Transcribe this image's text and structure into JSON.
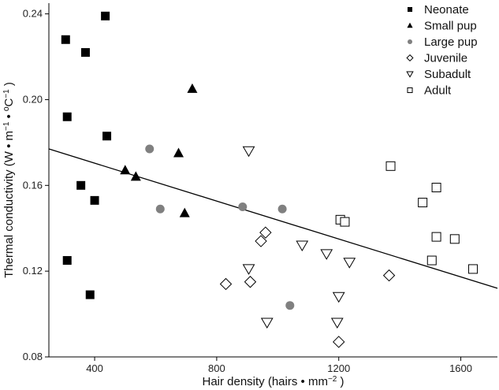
{
  "chart_data": {
    "type": "scatter",
    "xlabel": "Hair density (hairs • mm",
    "xlabel_sup": "−2",
    "xlabel_suffix": " )",
    "ylabel": "Thermal conductivity (W • m",
    "ylabel_sup1": "−1",
    "ylabel_mid": " • ºC",
    "ylabel_sup2": "−1",
    "ylabel_suffix": " )",
    "xlim": [
      250,
      1720
    ],
    "ylim": [
      0.08,
      0.245
    ],
    "x_ticks": [
      400,
      800,
      1200,
      1600
    ],
    "y_ticks": [
      0.08,
      0.12,
      0.16,
      0.2,
      0.24
    ],
    "x_tick_labels": [
      "400",
      "800",
      "1200",
      "1600"
    ],
    "y_tick_labels": [
      "0.08",
      "0.12",
      "0.16",
      "0.20",
      "0.24"
    ],
    "grid": false,
    "legend_position": "top-right",
    "series": [
      {
        "name": "Neonate",
        "marker": "square-filled",
        "color": "#000000",
        "points": [
          [
            435,
            0.239
          ],
          [
            305,
            0.228
          ],
          [
            370,
            0.222
          ],
          [
            310,
            0.192
          ],
          [
            440,
            0.183
          ],
          [
            355,
            0.16
          ],
          [
            400,
            0.153
          ],
          [
            310,
            0.125
          ],
          [
            385,
            0.109
          ]
        ]
      },
      {
        "name": "Small pup",
        "marker": "triangle-filled",
        "color": "#000000",
        "points": [
          [
            720,
            0.205
          ],
          [
            675,
            0.175
          ],
          [
            500,
            0.167
          ],
          [
            535,
            0.164
          ],
          [
            695,
            0.147
          ]
        ]
      },
      {
        "name": "Large pup",
        "marker": "circle-filled",
        "color": "#808080",
        "points": [
          [
            580,
            0.177
          ],
          [
            615,
            0.149
          ],
          [
            885,
            0.15
          ],
          [
            1015,
            0.149
          ],
          [
            1040,
            0.104
          ]
        ]
      },
      {
        "name": "Juvenile",
        "marker": "diamond-open",
        "color": "#000000",
        "points": [
          [
            960,
            0.138
          ],
          [
            945,
            0.134
          ],
          [
            830,
            0.114
          ],
          [
            910,
            0.115
          ],
          [
            1365,
            0.118
          ],
          [
            1200,
            0.087
          ]
        ]
      },
      {
        "name": "Subadult",
        "marker": "triangle-down-open",
        "color": "#000000",
        "points": [
          [
            905,
            0.176
          ],
          [
            1080,
            0.132
          ],
          [
            1160,
            0.128
          ],
          [
            1235,
            0.124
          ],
          [
            905,
            0.121
          ],
          [
            1200,
            0.108
          ],
          [
            965,
            0.096
          ],
          [
            1195,
            0.096
          ]
        ]
      },
      {
        "name": "Adult",
        "marker": "square-open",
        "color": "#000000",
        "points": [
          [
            1370,
            0.169
          ],
          [
            1520,
            0.159
          ],
          [
            1475,
            0.152
          ],
          [
            1205,
            0.144
          ],
          [
            1220,
            0.143
          ],
          [
            1520,
            0.136
          ],
          [
            1580,
            0.135
          ],
          [
            1505,
            0.125
          ],
          [
            1640,
            0.121
          ]
        ]
      }
    ],
    "trend_line": {
      "x": [
        250,
        1720
      ],
      "y": [
        0.177,
        0.112
      ]
    }
  }
}
